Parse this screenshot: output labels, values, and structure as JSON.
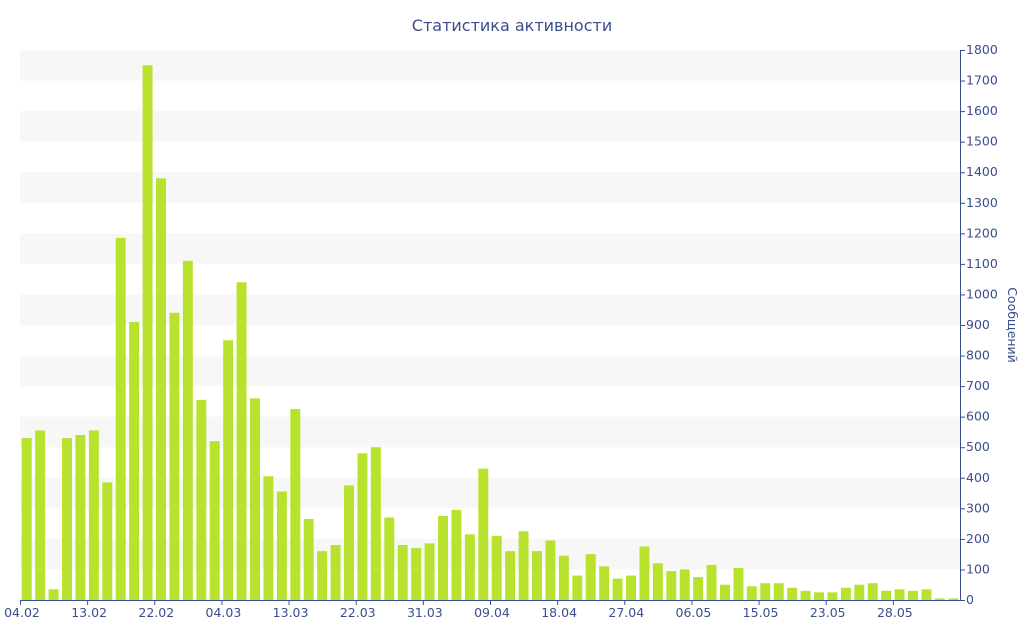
{
  "chart_data": {
    "type": "bar",
    "title": "Статистика активности",
    "xlabel": "",
    "ylabel": "Сообщений",
    "ylim": [
      0,
      1800
    ],
    "y_ticks": [
      "0",
      "100",
      "200",
      "300",
      "400",
      "500",
      "600",
      "700",
      "800",
      "900",
      "1000",
      "1100",
      "1200",
      "1300",
      "1400",
      "1500",
      "1600",
      "1700",
      "1800"
    ],
    "x_tick_labels": [
      "04.02",
      "13.02",
      "22.02",
      "04.03",
      "13.03",
      "22.03",
      "31.03",
      "09.04",
      "18.04",
      "27.04",
      "06.05",
      "15.05",
      "23.05",
      "28.05"
    ],
    "x_tick_bar_index": [
      0,
      5,
      10,
      15,
      20,
      25,
      30,
      35,
      40,
      45,
      50,
      55,
      60,
      65
    ],
    "y_axis_position": "right",
    "grid": "alternating horizontal bands",
    "bar_color": "#b8e22e",
    "axis_color": "#3b4e8c",
    "band_color": "#f7f7f7",
    "values": [
      530,
      555,
      35,
      530,
      540,
      555,
      385,
      1185,
      910,
      1750,
      1380,
      940,
      1110,
      655,
      520,
      850,
      1040,
      660,
      405,
      355,
      625,
      265,
      160,
      180,
      375,
      480,
      500,
      270,
      180,
      170,
      185,
      275,
      295,
      215,
      430,
      210,
      160,
      225,
      160,
      195,
      145,
      80,
      150,
      110,
      70,
      80,
      175,
      120,
      95,
      100,
      75,
      115,
      50,
      105,
      45,
      55,
      55,
      40,
      30,
      25,
      25,
      40,
      50,
      55,
      30,
      35,
      30,
      35,
      5,
      5
    ]
  }
}
